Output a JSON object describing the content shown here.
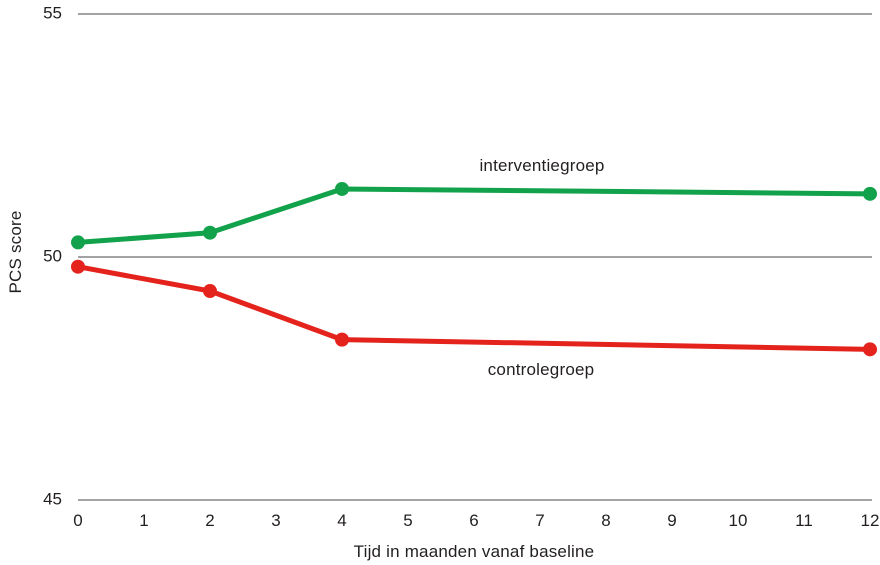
{
  "chart_data": {
    "type": "line",
    "title": "",
    "xlabel": "Tijd in maanden vanaf baseline",
    "ylabel": "PCS score",
    "x": [
      0,
      2,
      4,
      12
    ],
    "series": [
      {
        "name": "interventiegroep",
        "color": "#12a24b",
        "values": [
          50.3,
          50.5,
          51.4,
          51.3
        ]
      },
      {
        "name": "controlegroep",
        "color": "#e4231c",
        "values": [
          49.8,
          49.3,
          48.3,
          48.1
        ]
      }
    ],
    "xlim": [
      0,
      12
    ],
    "ylim": [
      45,
      55
    ],
    "x_ticks": [
      0,
      1,
      2,
      3,
      4,
      5,
      6,
      7,
      8,
      9,
      10,
      11,
      12
    ],
    "y_ticks": [
      45,
      50,
      55
    ],
    "grid": "horizontal-only",
    "legend_position": "inline-labels",
    "marker": "circle",
    "gridline_color": "#a3a3a3",
    "text_color": "#231f20",
    "background_color": "#ffffff"
  }
}
